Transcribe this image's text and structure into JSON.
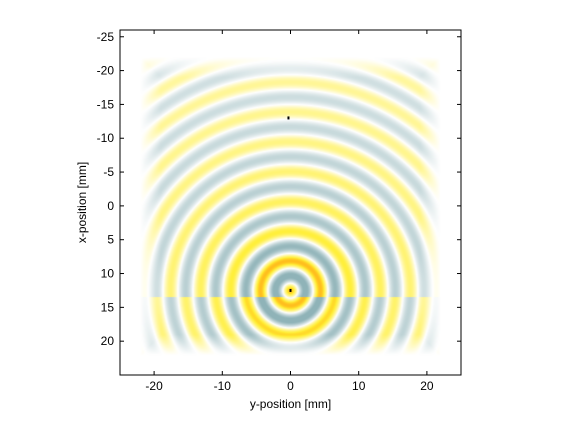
{
  "chart_data": {
    "type": "heatmap",
    "title": "",
    "xlabel": "y-position [mm]",
    "ylabel": "x-position [mm]",
    "xlim": [
      -25,
      25
    ],
    "ylim": [
      25,
      -26
    ],
    "y_axis_reversed": true,
    "xticks": [
      -20,
      -10,
      0,
      10,
      20
    ],
    "xtick_labels": [
      "-20",
      "-10",
      "0",
      "10",
      "20"
    ],
    "yticks": [
      -25,
      -20,
      -15,
      -10,
      -5,
      0,
      5,
      10,
      15,
      20
    ],
    "ytick_labels": [
      "-25",
      "-20",
      "-15",
      "-10",
      "-5",
      "0",
      "5",
      "10",
      "15",
      "20"
    ],
    "grid": false,
    "field": {
      "description_of_pattern": "concentric ring wave pattern centered at source",
      "source": {
        "y": 0,
        "x": 12.5
      },
      "wavelength_mm": 4.4,
      "extent_y": [
        -22,
        22
      ],
      "extent_x": [
        -22,
        22
      ],
      "cut_line_x": 13.5
    },
    "markers": [
      {
        "name": "source",
        "y": 0,
        "x": 12.5
      },
      {
        "name": "point",
        "y": -0.3,
        "x": -13
      }
    ],
    "colors": {
      "positive": "#ffee33",
      "positive_peak": "#ff7a00",
      "negative": "#8fb3b8",
      "background": "#ffffff",
      "marker": "#000000"
    }
  }
}
